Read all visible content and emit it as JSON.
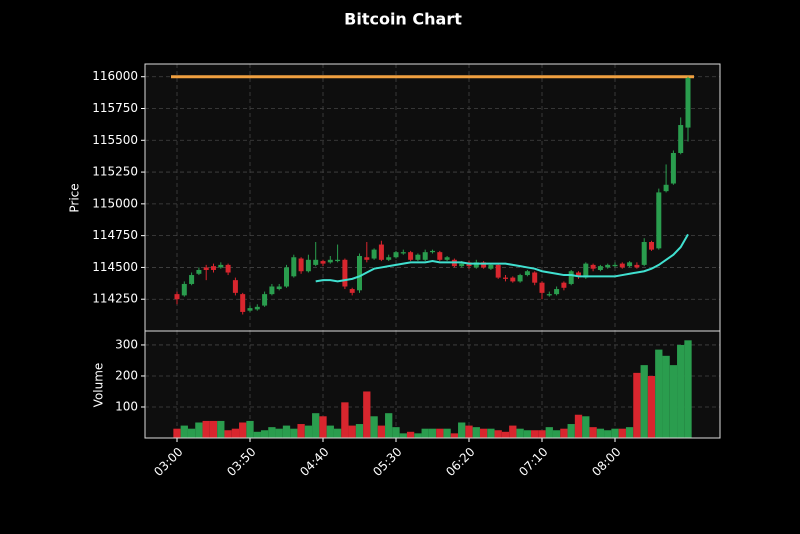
{
  "chart_data": {
    "type": "candlestick",
    "title": "Bitcoin Chart",
    "ylabel": "Price",
    "categories": [
      "03:00",
      null,
      null,
      null,
      null,
      null,
      null,
      null,
      null,
      null,
      "03:50",
      null,
      null,
      null,
      null,
      null,
      null,
      null,
      null,
      null,
      "04:40",
      null,
      null,
      null,
      null,
      null,
      null,
      null,
      null,
      null,
      "05:30",
      null,
      null,
      null,
      null,
      null,
      null,
      null,
      null,
      null,
      "06:20",
      null,
      null,
      null,
      null,
      null,
      null,
      null,
      null,
      null,
      "07:10",
      null,
      null,
      null,
      null,
      null,
      null,
      null,
      null,
      null,
      "08:00",
      null,
      null,
      null,
      null,
      null,
      null,
      null,
      null,
      null,
      null
    ],
    "open": [
      114290,
      114280,
      114370,
      114450,
      114500,
      114510,
      114500,
      114520,
      114400,
      114290,
      114160,
      114170,
      114200,
      114290,
      114330,
      114350,
      114430,
      114570,
      114470,
      114520,
      114550,
      114540,
      114550,
      114560,
      114330,
      114320,
      114580,
      114570,
      114680,
      114560,
      114580,
      114610,
      114620,
      114560,
      114560,
      114620,
      114620,
      114560,
      114560,
      114510,
      114540,
      114500,
      114540,
      114490,
      114520,
      114420,
      114420,
      114390,
      114440,
      114460,
      114380,
      114280,
      114290,
      114380,
      114370,
      114460,
      114420,
      114520,
      114480,
      114500,
      114510,
      114530,
      114510,
      114520,
      114520,
      114700,
      114650,
      115100,
      115160,
      115400,
      115600
    ],
    "high": [
      114310,
      114390,
      114460,
      114500,
      114520,
      114530,
      114540,
      114530,
      114420,
      114300,
      114200,
      114210,
      114310,
      114370,
      114370,
      114520,
      114600,
      114580,
      114600,
      114700,
      114560,
      114590,
      114680,
      114570,
      114340,
      114610,
      114700,
      114650,
      114710,
      114600,
      114630,
      114640,
      114630,
      114610,
      114640,
      114640,
      114630,
      114590,
      114570,
      114550,
      114550,
      114560,
      114550,
      114530,
      114530,
      114440,
      114430,
      114450,
      114480,
      114470,
      114390,
      114310,
      114350,
      114390,
      114480,
      114470,
      114540,
      114530,
      114520,
      114530,
      114540,
      114540,
      114550,
      114540,
      114730,
      114710,
      115120,
      115310,
      115420,
      115680,
      116000
    ],
    "low": [
      114210,
      114270,
      114360,
      114440,
      114400,
      114460,
      114490,
      114440,
      114280,
      114130,
      114150,
      114160,
      114190,
      114280,
      114320,
      114340,
      114420,
      114450,
      114460,
      114510,
      114510,
      114530,
      114540,
      114330,
      114280,
      114300,
      114540,
      114560,
      114550,
      114550,
      114570,
      114600,
      114550,
      114550,
      114550,
      114610,
      114550,
      114550,
      114500,
      114500,
      114490,
      114490,
      114490,
      114480,
      114410,
      114390,
      114380,
      114380,
      114430,
      114360,
      114250,
      114270,
      114280,
      114320,
      114360,
      114410,
      114410,
      114470,
      114470,
      114490,
      114500,
      114490,
      114500,
      114490,
      114510,
      114630,
      114640,
      115090,
      115150,
      115390,
      115490
    ],
    "close": [
      114250,
      114370,
      114440,
      114480,
      114480,
      114480,
      114520,
      114460,
      114300,
      114150,
      114180,
      114190,
      114290,
      114350,
      114350,
      114500,
      114580,
      114470,
      114560,
      114560,
      114530,
      114560,
      114560,
      114350,
      114300,
      114590,
      114560,
      114640,
      114560,
      114580,
      114620,
      114620,
      114560,
      114600,
      114620,
      114630,
      114560,
      114580,
      114510,
      114530,
      114510,
      114540,
      114500,
      114520,
      114420,
      114410,
      114390,
      114440,
      114470,
      114380,
      114300,
      114290,
      114330,
      114340,
      114470,
      114430,
      114530,
      114490,
      114510,
      114520,
      114520,
      114500,
      114540,
      114500,
      114700,
      114640,
      115090,
      115150,
      115400,
      115620,
      115990
    ],
    "up_color": "#2a9d4e",
    "down_color": "#d8262e",
    "ylim": [
      114000,
      116100
    ],
    "yticks": [
      114250,
      114500,
      114750,
      115000,
      115250,
      115500,
      115750,
      116000
    ],
    "grid": true,
    "ma": {
      "color": "#40e0d0",
      "values": [
        null,
        null,
        null,
        null,
        null,
        null,
        null,
        null,
        null,
        null,
        null,
        null,
        null,
        null,
        null,
        null,
        null,
        null,
        null,
        114390,
        114400,
        114400,
        114390,
        114400,
        114410,
        114430,
        114460,
        114490,
        114500,
        114510,
        114520,
        114530,
        114540,
        114540,
        114540,
        114550,
        114540,
        114540,
        114540,
        114540,
        114530,
        114530,
        114530,
        114530,
        114530,
        114530,
        114520,
        114510,
        114500,
        114490,
        114470,
        114460,
        114450,
        114440,
        114440,
        114430,
        114430,
        114430,
        114430,
        114430,
        114430,
        114440,
        114450,
        114460,
        114470,
        114490,
        114520,
        114560,
        114600,
        114660,
        114760
      ]
    },
    "hline": {
      "value": 116000,
      "color": "#f0a040"
    },
    "volume": {
      "ylabel": "Volume",
      "ylim": [
        0,
        345
      ],
      "yticks": [
        100,
        200,
        300
      ],
      "values": [
        30,
        40,
        30,
        50,
        55,
        55,
        55,
        25,
        30,
        50,
        55,
        20,
        25,
        35,
        30,
        40,
        30,
        45,
        40,
        80,
        70,
        40,
        30,
        115,
        40,
        45,
        150,
        70,
        40,
        80,
        35,
        15,
        20,
        15,
        30,
        30,
        30,
        30,
        15,
        50,
        40,
        35,
        30,
        30,
        25,
        20,
        40,
        30,
        25,
        25,
        25,
        35,
        25,
        30,
        45,
        75,
        70,
        35,
        30,
        25,
        30,
        30,
        35,
        210,
        235,
        200,
        285,
        265,
        235,
        300,
        315
      ]
    }
  }
}
